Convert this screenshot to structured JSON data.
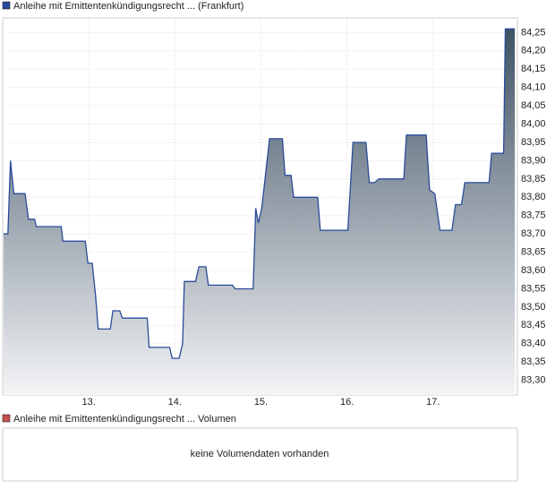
{
  "chart_data": {
    "type": "area",
    "series": [
      {
        "name": "Anleihe mit Emittentenkündigungsrecht ... (Frankfurt)",
        "color": "#2a4a9a",
        "x": [
          12.01,
          12.06,
          12.09,
          12.13,
          12.26,
          12.3,
          12.37,
          12.39,
          12.68,
          12.7,
          12.96,
          12.99,
          13.04,
          13.08,
          13.11,
          13.25,
          13.28,
          13.36,
          13.39,
          13.68,
          13.7,
          13.94,
          13.97,
          14.05,
          14.09,
          14.11,
          14.24,
          14.28,
          14.36,
          14.39,
          14.67,
          14.7,
          14.91,
          14.94,
          14.97,
          15.01,
          15.1,
          15.25,
          15.28,
          15.35,
          15.38,
          15.66,
          15.69,
          16.01,
          16.07,
          16.22,
          16.26,
          16.32,
          16.37,
          16.66,
          16.69,
          16.92,
          16.96,
          17.02,
          17.08,
          17.22,
          17.26,
          17.33,
          17.37,
          17.65,
          17.68,
          17.82,
          17.84,
          17.95
        ],
        "values": [
          83.7,
          83.7,
          83.9,
          83.81,
          83.81,
          83.74,
          83.74,
          83.72,
          83.72,
          83.68,
          83.68,
          83.62,
          83.62,
          83.53,
          83.44,
          83.44,
          83.49,
          83.49,
          83.47,
          83.47,
          83.39,
          83.39,
          83.36,
          83.36,
          83.4,
          83.57,
          83.57,
          83.61,
          83.61,
          83.56,
          83.56,
          83.55,
          83.55,
          83.77,
          83.73,
          83.77,
          83.96,
          83.96,
          83.86,
          83.86,
          83.8,
          83.8,
          83.71,
          83.71,
          83.95,
          83.95,
          83.84,
          83.84,
          83.85,
          83.85,
          83.97,
          83.97,
          83.82,
          83.81,
          83.71,
          83.71,
          83.78,
          83.78,
          83.84,
          83.84,
          83.92,
          83.92,
          84.26,
          84.26
        ]
      }
    ],
    "xlim": [
      12,
      17.98
    ],
    "xticks": [
      {
        "value": 13,
        "label": "13."
      },
      {
        "value": 14,
        "label": "14."
      },
      {
        "value": 15,
        "label": "15."
      },
      {
        "value": 16,
        "label": "16."
      },
      {
        "value": 17,
        "label": "17."
      }
    ],
    "ylim": [
      83.26,
      84.29
    ],
    "yticks": [
      {
        "value": 83.3,
        "label": "83,30"
      },
      {
        "value": 83.35,
        "label": "83,35"
      },
      {
        "value": 83.4,
        "label": "83,40"
      },
      {
        "value": 83.45,
        "label": "83,45"
      },
      {
        "value": 83.5,
        "label": "83,50"
      },
      {
        "value": 83.55,
        "label": "83,55"
      },
      {
        "value": 83.6,
        "label": "83,60"
      },
      {
        "value": 83.65,
        "label": "83,65"
      },
      {
        "value": 83.7,
        "label": "83,70"
      },
      {
        "value": 83.75,
        "label": "83,75"
      },
      {
        "value": 83.8,
        "label": "83,80"
      },
      {
        "value": 83.85,
        "label": "83,85"
      },
      {
        "value": 83.9,
        "label": "83,90"
      },
      {
        "value": 83.95,
        "label": "83,95"
      },
      {
        "value": 84,
        "label": "84,00"
      },
      {
        "value": 84.05,
        "label": "84,05"
      },
      {
        "value": 84.1,
        "label": "84,10"
      },
      {
        "value": 84.15,
        "label": "84,15"
      },
      {
        "value": 84.2,
        "label": "84,20"
      },
      {
        "value": 84.25,
        "label": "84,25"
      }
    ],
    "grid": true
  },
  "volume_panel": {
    "legend": "Anleihe mit Emittentenkündigungsrecht ... Volumen",
    "color": "#c85050",
    "message": "keine Volumendaten vorhanden"
  }
}
